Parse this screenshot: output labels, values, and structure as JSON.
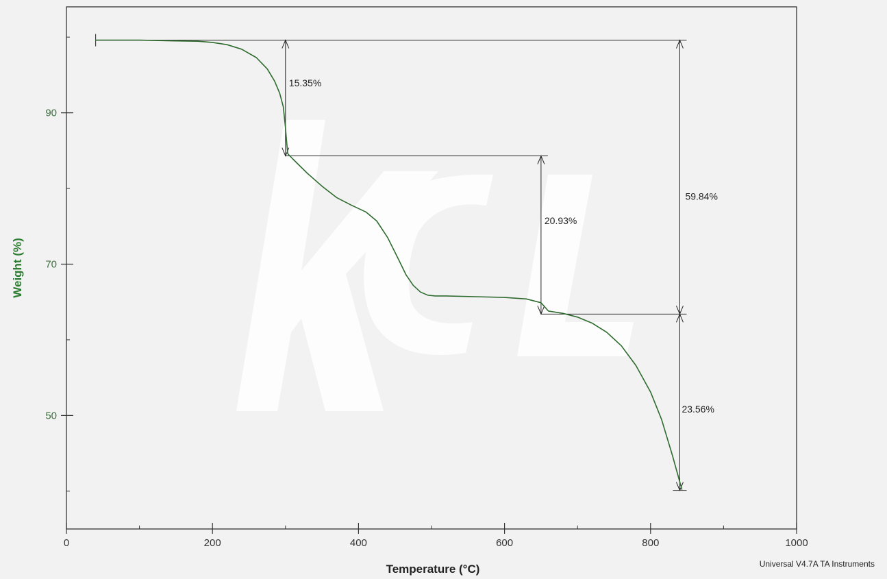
{
  "chart_data": {
    "type": "line",
    "xlabel": "Temperature (°C)",
    "ylabel": "Weight (%)",
    "xlim": [
      0,
      1000
    ],
    "ylim": [
      35,
      104
    ],
    "x_ticks": [
      0,
      200,
      400,
      600,
      800,
      1000
    ],
    "y_ticks": [
      50,
      70,
      90
    ],
    "grid": false,
    "series": [
      {
        "color": "#2e6b2e",
        "x": [
          40,
          100,
          150,
          180,
          200,
          220,
          240,
          260,
          275,
          285,
          292,
          297,
          300,
          303,
          310,
          330,
          350,
          370,
          390,
          410,
          425,
          440,
          455,
          465,
          475,
          485,
          495,
          505,
          520,
          560,
          600,
          630,
          650,
          660,
          680,
          700,
          720,
          740,
          760,
          780,
          800,
          815,
          830,
          843
        ],
        "y": [
          99.6,
          99.6,
          99.5,
          99.45,
          99.3,
          99.0,
          98.4,
          97.3,
          95.8,
          94.2,
          92.6,
          90.8,
          88.0,
          84.6,
          83.9,
          82.0,
          80.3,
          78.8,
          77.8,
          76.9,
          75.7,
          73.5,
          70.6,
          68.6,
          67.2,
          66.3,
          65.9,
          65.8,
          65.8,
          65.7,
          65.6,
          65.4,
          64.9,
          63.8,
          63.5,
          63.0,
          62.2,
          61.0,
          59.2,
          56.6,
          53.1,
          49.5,
          44.7,
          40.2
        ]
      }
    ],
    "annotations": [
      {
        "label": "15.35%",
        "x": 300,
        "y_top": 99.6,
        "y_bottom": 84.3
      },
      {
        "label": "20.93%",
        "x": 650,
        "y_top": 84.3,
        "y_bottom": 63.4
      },
      {
        "label": "23.56%",
        "x": 840,
        "y_top": 63.4,
        "y_bottom": 40.1
      },
      {
        "label": "59.84%",
        "x": 840,
        "y_top": 99.6,
        "y_bottom": 40.1
      }
    ],
    "footer": "Universal V4.7A TA Instruments"
  },
  "colors": {
    "curve": "#2e6b2e",
    "frame": "#333333",
    "annotation": "#222222",
    "y_label": "#2e7d32"
  }
}
